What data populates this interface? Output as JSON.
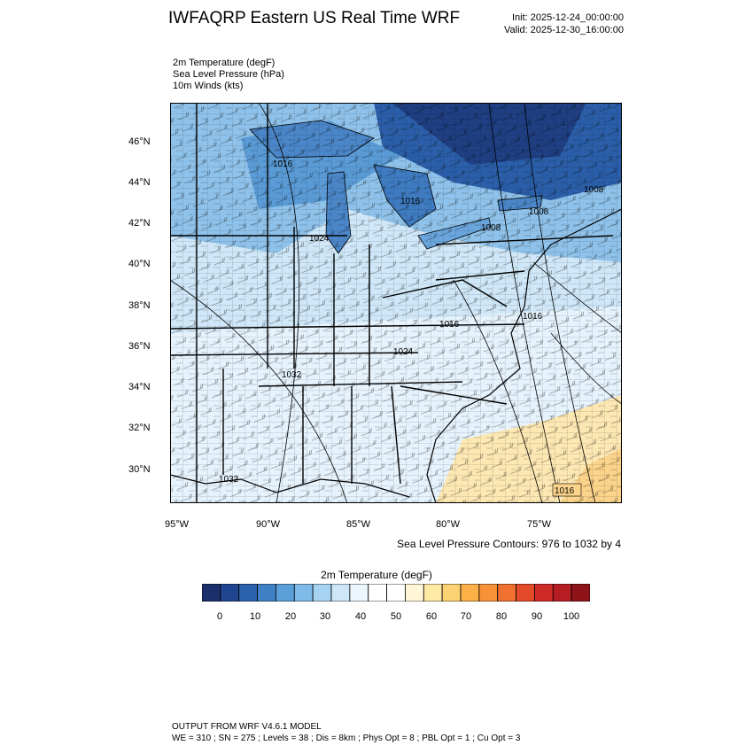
{
  "header": {
    "title": "IWFAQRP Eastern US Real Time WRF",
    "init": "Init: 2025-12-24_00:00:00",
    "valid": "Valid: 2025-12-30_16:00:00"
  },
  "fields": [
    "2m Temperature   (degF)",
    "Sea Level Pressure   (hPa)",
    "10m Winds   (kts)"
  ],
  "axes": {
    "lat_labels": [
      "46°N",
      "44°N",
      "42°N",
      "40°N",
      "38°N",
      "36°N",
      "34°N",
      "32°N",
      "30°N"
    ],
    "lon_labels": [
      "95°W",
      "90°W",
      "85°W",
      "80°W",
      "75°W"
    ]
  },
  "contour_labels": [
    "1016",
    "1016",
    "1024",
    "1008",
    "1008",
    "1008",
    "1016",
    "1016",
    "1024",
    "1032",
    "1016",
    "1032"
  ],
  "contour_note": "Sea Level Pressure Contours: 976 to 1032 by 4",
  "colorbar": {
    "title": "2m Temperature  (degF)",
    "labels": [
      "0",
      "10",
      "20",
      "30",
      "40",
      "50",
      "60",
      "70",
      "80",
      "90",
      "100"
    ],
    "colors": [
      "#1a2f6b",
      "#1f4590",
      "#2c62ad",
      "#3f80c4",
      "#5a9fd8",
      "#7fbbe8",
      "#a6d3f2",
      "#cde7f8",
      "#edf6fc",
      "#ffffff",
      "#ffffff",
      "#fff6d8",
      "#feeaa4",
      "#fdd272",
      "#fbb048",
      "#f79238",
      "#f07030",
      "#e34a2a",
      "#cf2b26",
      "#b51d23",
      "#8f1419"
    ]
  },
  "footer": {
    "line1": "OUTPUT FROM WRF V4.6.1 MODEL",
    "line2": "WE = 310 ; SN = 275 ; Levels = 38 ; Dis = 8km ; Phys Opt = 8 ; PBL Opt = 1 ; Cu Opt = 3"
  }
}
